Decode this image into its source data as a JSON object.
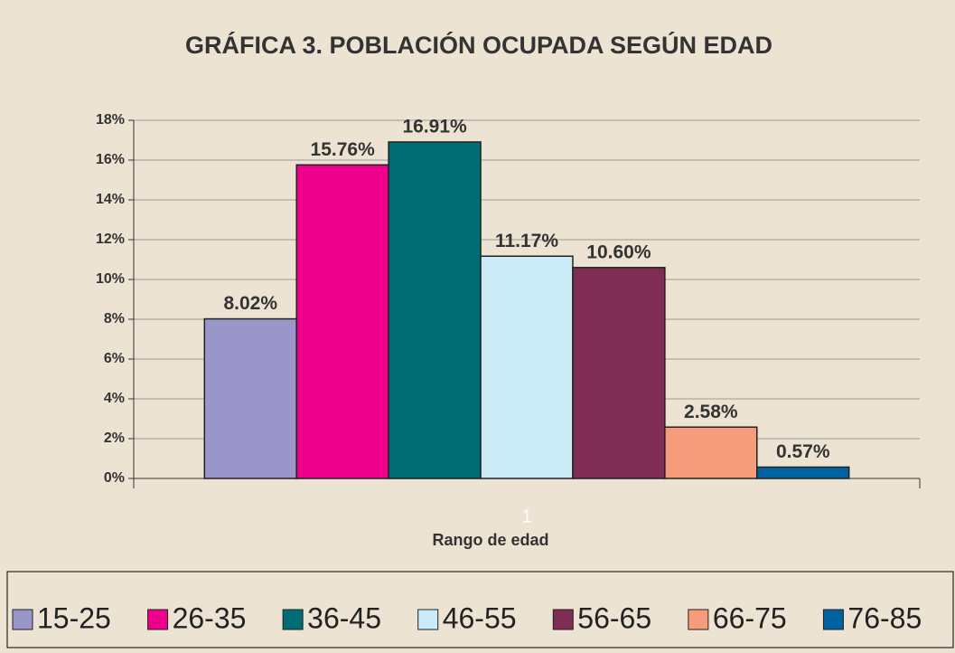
{
  "chart_data": {
    "type": "bar",
    "title": "GRÁFICA 3.  POBLACIÓN OCUPADA SEGÚN EDAD",
    "x_label": "Rango de edad",
    "categories": [
      "1"
    ],
    "series": [
      {
        "name": "15-25",
        "color": "#9b96c9",
        "values": [
          8.02
        ],
        "value_labels": [
          "8.02%"
        ]
      },
      {
        "name": "26-35",
        "color": "#ec008c",
        "values": [
          15.76
        ],
        "value_labels": [
          "15.76%"
        ]
      },
      {
        "name": "36-45",
        "color": "#006d74",
        "values": [
          16.91
        ],
        "value_labels": [
          "16.91%"
        ]
      },
      {
        "name": "46-55",
        "color": "#cbebf9",
        "values": [
          11.17
        ],
        "value_labels": [
          "11.17%"
        ]
      },
      {
        "name": "56-65",
        "color": "#7f2d55",
        "values": [
          10.6
        ],
        "value_labels": [
          "10.60%"
        ]
      },
      {
        "name": "66-75",
        "color": "#f79c7b",
        "values": [
          2.58
        ],
        "value_labels": [
          "2.58%"
        ]
      },
      {
        "name": "76-85",
        "color": "#0062a0",
        "values": [
          0.57
        ],
        "value_labels": [
          "0.57%"
        ]
      }
    ],
    "ylim": [
      0,
      18
    ],
    "yticks": [
      {
        "value": 0,
        "label": "0%"
      },
      {
        "value": 2,
        "label": "2%"
      },
      {
        "value": 4,
        "label": "4%"
      },
      {
        "value": 6,
        "label": "6%"
      },
      {
        "value": 8,
        "label": "8%"
      },
      {
        "value": 10,
        "label": "10%"
      },
      {
        "value": 12,
        "label": "12%"
      },
      {
        "value": 14,
        "label": "14%"
      },
      {
        "value": 16,
        "label": "16%"
      },
      {
        "value": 18,
        "label": "18%"
      }
    ],
    "grid": true,
    "legend": "bottom"
  }
}
